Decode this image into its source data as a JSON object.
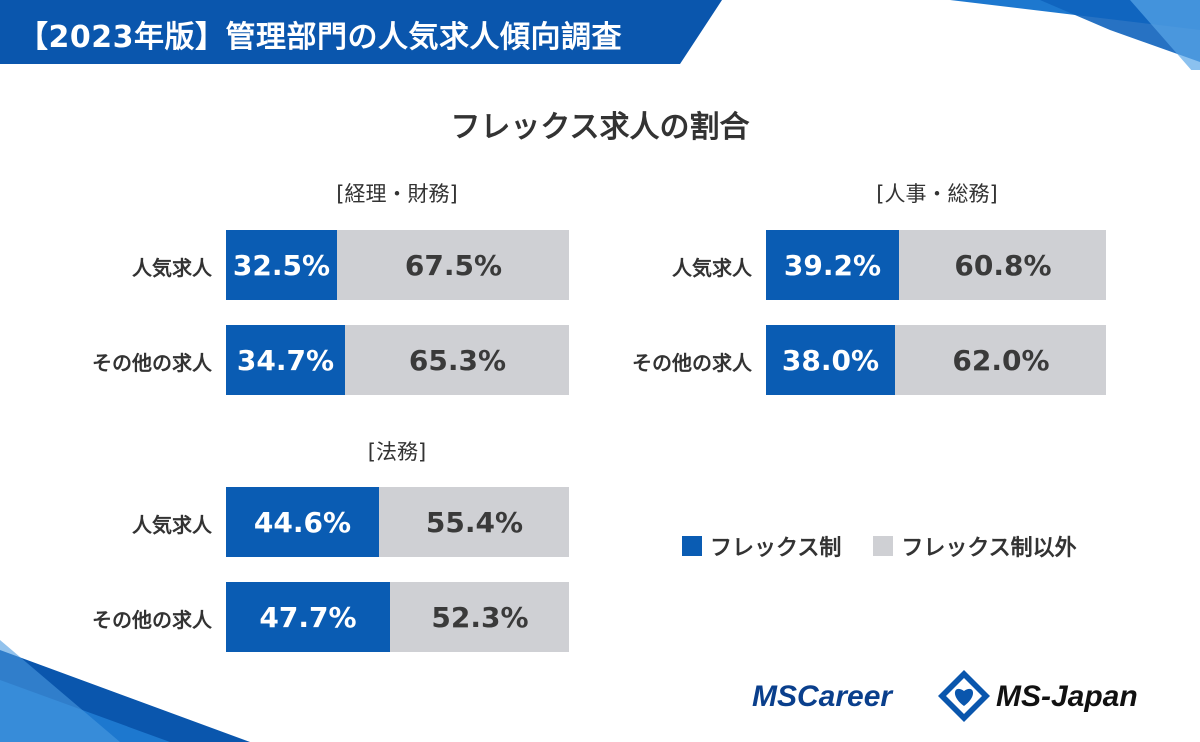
{
  "header": {
    "title": "【2023年版】管理部門の人気求人傾向調査"
  },
  "colors": {
    "flex": "#0a5cb3",
    "other": "#cfd0d4",
    "banner": "#0a56ad"
  },
  "chart_data": {
    "type": "bar",
    "stacked": true,
    "orientation": "horizontal",
    "title": "フレックス求人の割合",
    "legend": {
      "placement": "right",
      "entries": [
        "フレックス制",
        "フレックス制以外"
      ]
    },
    "groups": [
      {
        "title": "[経理・財務]",
        "categories": [
          "人気求人",
          "その他の求人"
        ],
        "series": [
          {
            "name": "フレックス制",
            "values": [
              32.5,
              34.7
            ],
            "labels": [
              "32.5%",
              "34.7%"
            ]
          },
          {
            "name": "フレックス制以外",
            "values": [
              67.5,
              65.3
            ],
            "labels": [
              "67.5%",
              "65.3%"
            ]
          }
        ]
      },
      {
        "title": "[人事・総務]",
        "categories": [
          "人気求人",
          "その他の求人"
        ],
        "series": [
          {
            "name": "フレックス制",
            "values": [
              39.2,
              38.0
            ],
            "labels": [
              "39.2%",
              "38.0%"
            ]
          },
          {
            "name": "フレックス制以外",
            "values": [
              60.8,
              62.0
            ],
            "labels": [
              "60.8%",
              "62.0%"
            ]
          }
        ]
      },
      {
        "title": "[法務]",
        "categories": [
          "人気求人",
          "その他の求人"
        ],
        "series": [
          {
            "name": "フレックス制",
            "values": [
              44.6,
              47.7
            ],
            "labels": [
              "44.6%",
              "47.7%"
            ]
          },
          {
            "name": "フレックス制以外",
            "values": [
              55.4,
              52.3
            ],
            "labels": [
              "55.4%",
              "52.3%"
            ]
          }
        ]
      }
    ]
  },
  "footer": {
    "logo_left": "MSCareer",
    "logo_right": "MS-Japan",
    "logo_icon": "diamond-heart-icon"
  }
}
